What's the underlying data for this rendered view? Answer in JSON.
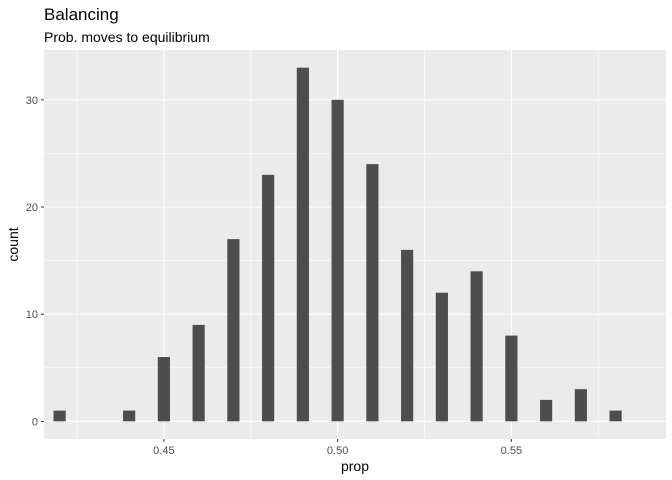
{
  "chart_data": {
    "type": "bar",
    "title": "Balancing",
    "subtitle": "Prob. moves to equilibrium",
    "xlabel": "prop",
    "ylabel": "count",
    "x": [
      0.42,
      0.44,
      0.45,
      0.46,
      0.47,
      0.48,
      0.49,
      0.5,
      0.51,
      0.52,
      0.53,
      0.54,
      0.55,
      0.56,
      0.57,
      0.58
    ],
    "values": [
      1,
      1,
      6,
      9,
      17,
      23,
      33,
      30,
      24,
      16,
      12,
      14,
      8,
      2,
      3,
      1
    ],
    "xlim": [
      0.4155,
      0.5945
    ],
    "ylim": [
      -1.65,
      34.65
    ],
    "x_ticks": [
      0.45,
      0.5,
      0.55
    ],
    "x_tick_labels": [
      "0.45",
      "0.50",
      "0.55"
    ],
    "y_ticks": [
      0,
      10,
      20,
      30
    ],
    "y_tick_labels": [
      "0",
      "10",
      "20",
      "30"
    ],
    "grid": true,
    "bar_color": "#4d4d4d",
    "panel_color": "#ebebeb",
    "grid_color": "#ffffff"
  }
}
